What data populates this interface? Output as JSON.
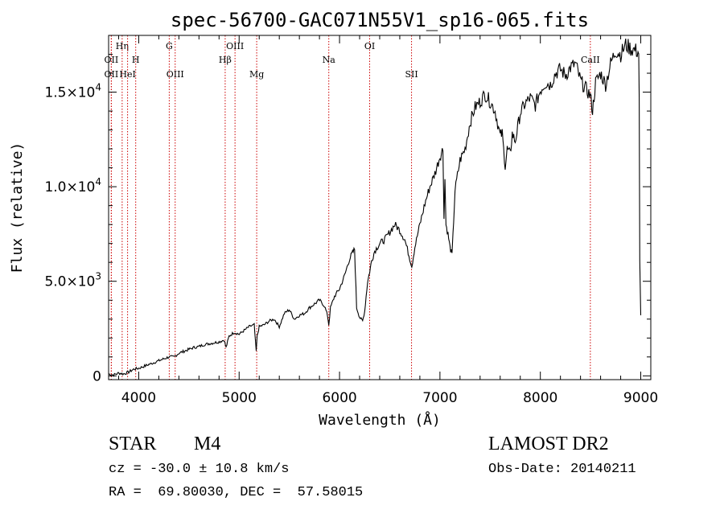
{
  "chart_data": {
    "type": "line",
    "title": "spec-56700-GAC071N55V1_sp16-065.fits",
    "xlabel": "Wavelength (Å)",
    "ylabel": "Flux (relative)",
    "xlim": [
      3700,
      9100
    ],
    "ylim": [
      -200,
      18000
    ],
    "x_ticks": [
      {
        "value": 4000,
        "label": "4000"
      },
      {
        "value": 5000,
        "label": "5000"
      },
      {
        "value": 6000,
        "label": "6000"
      },
      {
        "value": 7000,
        "label": "7000"
      },
      {
        "value": 8000,
        "label": "8000"
      },
      {
        "value": 9000,
        "label": "9000"
      }
    ],
    "y_ticks": [
      {
        "value": 0,
        "mant": "0",
        "exp": ""
      },
      {
        "value": 5000,
        "mant": "5.0×10",
        "exp": "3"
      },
      {
        "value": 10000,
        "mant": "1.0×10",
        "exp": "4"
      },
      {
        "value": 15000,
        "mant": "1.5×10",
        "exp": "4"
      }
    ],
    "grid": false,
    "line_color": "#000000",
    "marker_color": "#cc0000",
    "spectral_lines": [
      {
        "x": 3727,
        "label": "OII",
        "row": 2
      },
      {
        "x": 3727,
        "label": "OII",
        "row": 3
      },
      {
        "x": 3835,
        "label": "Hη",
        "row": 1
      },
      {
        "x": 3889,
        "label": "HeI",
        "row": 3
      },
      {
        "x": 3970,
        "label": "H",
        "row": 2
      },
      {
        "x": 4304,
        "label": "G",
        "row": 1
      },
      {
        "x": 4363,
        "label": "OIII",
        "row": 3
      },
      {
        "x": 4861,
        "label": "Hβ",
        "row": 2
      },
      {
        "x": 4959,
        "label": "OIII",
        "row": 1
      },
      {
        "x": 5175,
        "label": "Mg",
        "row": 3
      },
      {
        "x": 5893,
        "label": "Na",
        "row": 2
      },
      {
        "x": 6300,
        "label": "OI",
        "row": 1
      },
      {
        "x": 6717,
        "label": "SII",
        "row": 3
      },
      {
        "x": 8498,
        "label": "CaII",
        "row": 2
      }
    ],
    "series": [
      {
        "x": [
          3700,
          3750,
          3800,
          3850,
          3900,
          3950,
          4000,
          4050,
          4100,
          4150,
          4200,
          4250,
          4300,
          4350,
          4400,
          4450,
          4500,
          4550,
          4600,
          4650,
          4700,
          4750,
          4800,
          4850,
          4870,
          4900,
          4950,
          5000,
          5050,
          5100,
          5150,
          5170,
          5180,
          5200,
          5250,
          5300,
          5350,
          5400,
          5450,
          5500,
          5550,
          5600,
          5650,
          5700,
          5750,
          5800,
          5850,
          5880,
          5893,
          5910,
          5950,
          6000,
          6050,
          6100,
          6130,
          6150,
          6170,
          6200,
          6230,
          6250,
          6280,
          6300,
          6320,
          6350,
          6400,
          6450,
          6500,
          6550,
          6600,
          6650,
          6700,
          6720,
          6750,
          6800,
          6850,
          6900,
          6950,
          7000,
          7030,
          7040,
          7050,
          7060,
          7080,
          7100,
          7120,
          7130,
          7150,
          7200,
          7250,
          7300,
          7350,
          7400,
          7450,
          7500,
          7550,
          7600,
          7620,
          7650,
          7670,
          7700,
          7720,
          7750,
          7800,
          7850,
          7900,
          7950,
          8000,
          8050,
          8100,
          8150,
          8200,
          8250,
          8300,
          8350,
          8400,
          8450,
          8498,
          8520,
          8550,
          8600,
          8650,
          8700,
          8750,
          8800,
          8850,
          8900,
          8950,
          8980,
          8985,
          8990,
          9000
        ],
        "y": [
          100,
          50,
          150,
          100,
          200,
          350,
          400,
          500,
          600,
          700,
          800,
          900,
          1000,
          1000,
          1200,
          1300,
          1400,
          1500,
          1550,
          1650,
          1700,
          1750,
          1800,
          1900,
          1500,
          2100,
          2300,
          2200,
          2400,
          2600,
          2700,
          1300,
          2100,
          2600,
          2700,
          2900,
          3000,
          2600,
          3300,
          3500,
          3000,
          3200,
          3300,
          3600,
          3800,
          4000,
          3700,
          3200,
          2700,
          3600,
          4200,
          4600,
          5300,
          6200,
          6500,
          6700,
          3600,
          3100,
          2900,
          3400,
          5000,
          5500,
          6100,
          6600,
          7000,
          7200,
          7600,
          8000,
          7700,
          7200,
          6200,
          5800,
          6800,
          8000,
          9100,
          10000,
          10700,
          11600,
          12000,
          8500,
          10400,
          8000,
          7500,
          6800,
          6400,
          7400,
          9800,
          11400,
          12000,
          13400,
          14200,
          14500,
          14900,
          14500,
          14000,
          12700,
          12800,
          11100,
          12000,
          11700,
          12800,
          12400,
          13900,
          14400,
          14700,
          14300,
          15100,
          15500,
          15400,
          16000,
          16200,
          15900,
          16300,
          16500,
          15600,
          15200,
          14800,
          14000,
          15500,
          16000,
          15400,
          16500,
          17200,
          17000,
          17500,
          17300,
          17200,
          17100,
          14500,
          6000,
          3200
        ]
      }
    ]
  },
  "footer": {
    "object_type": "STAR",
    "subclass": "M4",
    "cz": "cz = -30.0 ± 10.8 km/s",
    "coords": "RA =  69.80030, DEC =  57.58015",
    "survey": "LAMOST DR2",
    "obs_date": "Obs-Date: 20140211"
  }
}
